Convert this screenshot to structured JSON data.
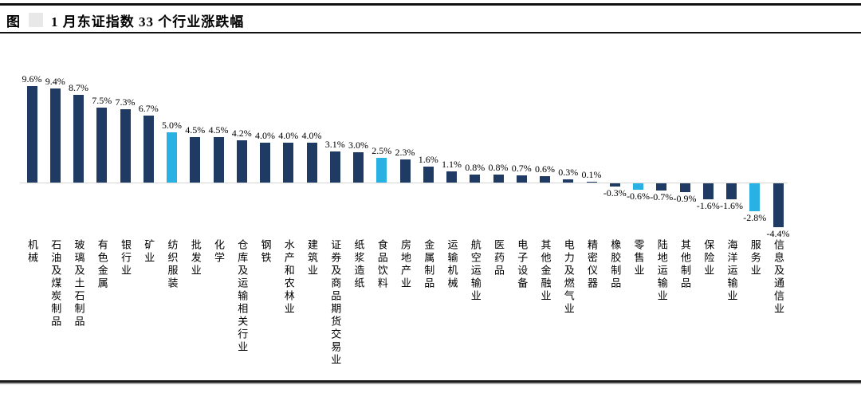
{
  "page": {
    "title_prefix": "图",
    "title": "1 月东证指数 33 个行业涨跌幅"
  },
  "chart_data": {
    "type": "bar",
    "title": "1月东证指数33个行业涨跌幅",
    "unit": "%",
    "value_labels_shown": true,
    "legend": "none",
    "grid": "off",
    "zero_axis_line": true,
    "ylim": [
      -4.4,
      9.6
    ],
    "colors": {
      "bar_default": "#1f3b63",
      "bar_highlight": "#29b1e4",
      "axis_line": "#d6d6d6",
      "label_text": "#000000"
    },
    "highlight_indices": [
      6,
      15,
      26,
      31
    ],
    "categories": [
      "机械",
      "石油及煤炭制品",
      "玻璃及土石制品",
      "有色金属",
      "银行业",
      "矿业",
      "纺织服装",
      "批发业",
      "化学",
      "仓库及运输相关行业",
      "钢铁",
      "水产和农林业",
      "建筑业",
      "证券及商品期货交易业",
      "纸浆造纸",
      "食品饮料",
      "房地产业",
      "金属制品",
      "运输机械",
      "航空运输业",
      "医药品",
      "电子设备",
      "其他金融业",
      "电力及燃气业",
      "精密仪器",
      "橡胶制品",
      "零售业",
      "陆地运输业",
      "其他制品",
      "保险业",
      "海洋运输业",
      "服务业",
      "信息及通信业"
    ],
    "values": [
      9.6,
      9.4,
      8.7,
      7.5,
      7.3,
      6.7,
      5.0,
      4.5,
      4.5,
      4.2,
      4.0,
      4.0,
      4.0,
      3.1,
      3.0,
      2.5,
      2.3,
      1.6,
      1.1,
      0.8,
      0.8,
      0.7,
      0.6,
      0.3,
      0.1,
      -0.3,
      -0.6,
      -0.7,
      -0.9,
      -1.6,
      -1.6,
      -2.8,
      -4.4
    ],
    "value_labels": [
      "9.6%",
      "9.4%",
      "8.7%",
      "7.5%",
      "7.3%",
      "6.7%",
      "5.0%",
      "4.5%",
      "4.5%",
      "4.2%",
      "4.0%",
      "4.0%",
      "4.0%",
      "3.1%",
      "3.0%",
      "2.5%",
      "2.3%",
      "1.6%",
      "1.1%",
      "0.8%",
      "0.8%",
      "0.7%",
      "0.6%",
      "0.3%",
      "0.1%",
      "-0.3%",
      "-0.6%",
      "-0.7%",
      "-0.9%",
      "-1.6%",
      "-1.6%",
      "-2.8%",
      "-4.4%"
    ]
  }
}
